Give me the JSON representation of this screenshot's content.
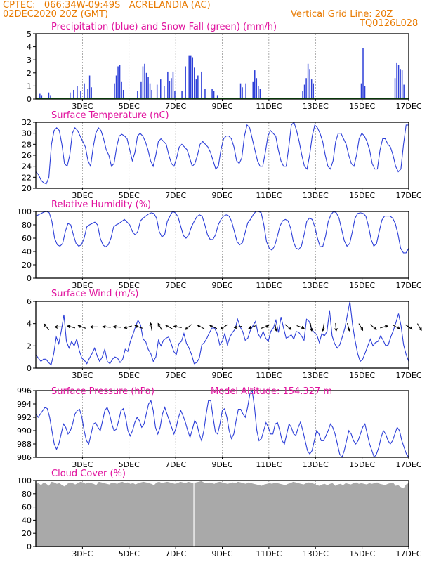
{
  "header": {
    "line1": "CPTEC:   066:34W-09:49S   ACRELANDIA (AC)",
    "line2": "02DEC2020 20Z (GMT)",
    "grid_note": "Vertical Grid Line: 20Z",
    "code": "TQ0126L028"
  },
  "colors": {
    "header": "#e87a00",
    "title": "#e0119d",
    "series_blue": "#2d3fd8",
    "snow_green": "#1aa01a",
    "cloud_gray": "#a9a9a9",
    "wind_arrow": "#000000"
  },
  "x_ticks": [
    "3DEC",
    "5DEC",
    "7DEC",
    "9DEC",
    "11DEC",
    "13DEC",
    "15DEC",
    "17DEC"
  ],
  "chart_data": [
    {
      "id": "precip",
      "type": "bar",
      "title": "Precipitation (blue) and Snow Fall (green) (mm/h)",
      "ylim": [
        0,
        5
      ],
      "yticks": [
        "0",
        "1",
        "2",
        "3",
        "4",
        "5"
      ],
      "x_unit": "days since 2 DEC 2020 20Z",
      "bars": [
        [
          0.2,
          0.4
        ],
        [
          0.3,
          0.3
        ],
        [
          0.7,
          0.5
        ],
        [
          0.8,
          0.3
        ],
        [
          1.9,
          0.5
        ],
        [
          2.1,
          0.7
        ],
        [
          2.3,
          1.0
        ],
        [
          2.5,
          0.6
        ],
        [
          2.7,
          1.2
        ],
        [
          2.9,
          0.8
        ],
        [
          3.0,
          1.8
        ],
        [
          3.1,
          0.9
        ],
        [
          4.4,
          1.2
        ],
        [
          4.5,
          1.8
        ],
        [
          4.6,
          2.5
        ],
        [
          4.7,
          2.6
        ],
        [
          4.8,
          1.3
        ],
        [
          4.9,
          0.7
        ],
        [
          5.7,
          0.6
        ],
        [
          5.9,
          1.3
        ],
        [
          6.0,
          2.5
        ],
        [
          6.1,
          2.7
        ],
        [
          6.2,
          2.0
        ],
        [
          6.3,
          1.7
        ],
        [
          6.4,
          1.2
        ],
        [
          6.5,
          0.7
        ],
        [
          6.8,
          1.1
        ],
        [
          7.0,
          1.5
        ],
        [
          7.2,
          1.0
        ],
        [
          7.4,
          2.1
        ],
        [
          7.5,
          1.4
        ],
        [
          7.6,
          1.6
        ],
        [
          7.7,
          2.1
        ],
        [
          7.8,
          0.6
        ],
        [
          8.2,
          0.6
        ],
        [
          8.4,
          2.5
        ],
        [
          8.6,
          3.3
        ],
        [
          8.7,
          3.3
        ],
        [
          8.8,
          3.2
        ],
        [
          8.9,
          2.4
        ],
        [
          9.0,
          1.5
        ],
        [
          9.1,
          1.8
        ],
        [
          9.3,
          2.1
        ],
        [
          9.5,
          0.8
        ],
        [
          9.9,
          0.8
        ],
        [
          10.0,
          0.6
        ],
        [
          10.2,
          0.3
        ],
        [
          11.5,
          1.2
        ],
        [
          11.6,
          0.9
        ],
        [
          11.8,
          1.2
        ],
        [
          12.2,
          1.3
        ],
        [
          12.3,
          2.2
        ],
        [
          12.4,
          1.6
        ],
        [
          12.5,
          1.0
        ],
        [
          12.6,
          0.8
        ],
        [
          15.0,
          0.6
        ],
        [
          15.1,
          1.1
        ],
        [
          15.2,
          1.6
        ],
        [
          15.3,
          2.7
        ],
        [
          15.4,
          2.3
        ],
        [
          15.5,
          1.5
        ],
        [
          15.6,
          1.2
        ],
        [
          18.3,
          1.2
        ],
        [
          18.4,
          3.9
        ],
        [
          18.5,
          1.0
        ],
        [
          20.2,
          1.6
        ],
        [
          20.3,
          2.8
        ],
        [
          20.4,
          2.6
        ],
        [
          20.5,
          2.3
        ],
        [
          20.6,
          2.2
        ],
        [
          20.7,
          1.1
        ]
      ]
    },
    {
      "id": "temp",
      "type": "line",
      "title": "Surface Temperature (nC)",
      "ylim": [
        20,
        32
      ],
      "yticks": [
        "20",
        "22",
        "24",
        "26",
        "28",
        "30",
        "32"
      ],
      "values": [
        23,
        22.5,
        21.5,
        21,
        20.8,
        22,
        28,
        30.5,
        31,
        30.5,
        28,
        24.5,
        24,
        26,
        30,
        31,
        30.5,
        29.5,
        28.5,
        27.5,
        25,
        24,
        27.5,
        30,
        31,
        30.5,
        29,
        27,
        26,
        24,
        24.5,
        27.5,
        29.5,
        29.8,
        29.5,
        29,
        27,
        25,
        26.5,
        29.5,
        30,
        29.5,
        28.5,
        27,
        25,
        24,
        26,
        28.5,
        29,
        28.5,
        28,
        26,
        24.5,
        24,
        25.5,
        27.5,
        28,
        27.5,
        27,
        25.5,
        24,
        24.5,
        26,
        28,
        28.5,
        28,
        27.5,
        26.5,
        25,
        23.5,
        24,
        27,
        29,
        29.5,
        29.5,
        29,
        27.5,
        25,
        24.5,
        25.5,
        29.5,
        31.5,
        31,
        29,
        27,
        25,
        24,
        24,
        26.5,
        29.5,
        30.5,
        30,
        29.5,
        27,
        25,
        24,
        24,
        27.5,
        31.5,
        32,
        30.5,
        28.5,
        26,
        24,
        23.5,
        26,
        29.5,
        31.5,
        31,
        30,
        28.5,
        26,
        24,
        23.5,
        25,
        28.5,
        30,
        30,
        29,
        28,
        26,
        24.5,
        24,
        26,
        29,
        30,
        29.5,
        28.5,
        27,
        24.5,
        23.5,
        23.5,
        27,
        29,
        29,
        28,
        27.5,
        26,
        24,
        23,
        23.5,
        28,
        31.5,
        31.5
      ]
    },
    {
      "id": "rh",
      "type": "line",
      "title": "Relative Humidity (%)",
      "ylim": [
        0,
        100
      ],
      "yticks": [
        "0",
        "20",
        "40",
        "60",
        "80",
        "100"
      ],
      "values": [
        93,
        95,
        97,
        99,
        100,
        98,
        85,
        60,
        50,
        48,
        52,
        70,
        82,
        80,
        65,
        52,
        48,
        50,
        60,
        77,
        80,
        82,
        84,
        80,
        60,
        50,
        47,
        50,
        60,
        77,
        80,
        82,
        85,
        88,
        84,
        80,
        70,
        65,
        70,
        86,
        90,
        93,
        96,
        98,
        97,
        90,
        70,
        62,
        65,
        85,
        93,
        100,
        98,
        92,
        78,
        64,
        60,
        65,
        77,
        85,
        92,
        95,
        93,
        80,
        65,
        58,
        58,
        65,
        80,
        88,
        93,
        95,
        93,
        85,
        70,
        55,
        50,
        53,
        68,
        83,
        88,
        95,
        100,
        100,
        98,
        80,
        55,
        45,
        42,
        48,
        62,
        78,
        86,
        88,
        86,
        75,
        55,
        45,
        43,
        48,
        65,
        85,
        90,
        88,
        77,
        60,
        47,
        48,
        63,
        85,
        95,
        100,
        98,
        90,
        73,
        56,
        48,
        52,
        70,
        90,
        97,
        98,
        97,
        93,
        78,
        58,
        48,
        52,
        70,
        87,
        93,
        93,
        93,
        90,
        82,
        66,
        45,
        38,
        38,
        45
      ]
    },
    {
      "id": "wind",
      "type": "line",
      "title": "Surface Wind (m/s)",
      "ylim": [
        0,
        6
      ],
      "yticks": [
        "0",
        "2",
        "4",
        "6"
      ],
      "values": [
        1.2,
        0.9,
        0.6,
        0.8,
        0.8,
        0.5,
        0.3,
        1.3,
        2.8,
        2.2,
        3.4,
        4.8,
        2.4,
        1.8,
        2.4,
        2.0,
        2.6,
        1.6,
        0.9,
        0.7,
        0.4,
        0.9,
        1.3,
        1.8,
        1.1,
        0.6,
        1.0,
        1.7,
        0.6,
        0.4,
        0.8,
        1.0,
        0.9,
        0.5,
        0.8,
        1.7,
        1.5,
        2.4,
        3.0,
        3.7,
        4.3,
        3.9,
        2.6,
        2.4,
        1.7,
        1.3,
        0.6,
        1.0,
        2.5,
        2.0,
        2.5,
        2.7,
        2.8,
        2.2,
        1.5,
        1.2,
        2.2,
        2.4,
        3.1,
        2.2,
        1.8,
        1.2,
        0.4,
        0.5,
        0.9,
        2.1,
        2.3,
        2.7,
        3.2,
        3.6,
        3.6,
        3.1,
        2.1,
        2.4,
        3.1,
        2.1,
        2.8,
        3.2,
        3.5,
        4.4,
        3.7,
        3.3,
        2.5,
        2.7,
        3.4,
        3.8,
        4.2,
        3.1,
        2.7,
        3.3,
        2.7,
        2.4,
        3.3,
        3.6,
        4.3,
        3.2,
        4.6,
        3.6,
        2.7,
        2.8,
        3.0,
        2.6,
        3.3,
        3.2,
        2.9,
        2.5,
        4.4,
        4.2,
        3.5,
        3.2,
        3.0,
        2.3,
        3.1,
        2.9,
        3.3,
        5.2,
        2.9,
        2.2,
        1.8,
        2.1,
        2.8,
        3.6,
        4.8,
        6.5,
        3.9,
        2.5,
        1.3,
        0.6,
        0.8,
        1.4,
        2.0,
        2.6,
        2.0,
        2.3,
        2.4,
        2.9,
        2.5,
        2.0,
        2.1,
        2.8,
        3.4,
        4.1,
        4.9,
        3.8,
        2.1,
        1.2,
        0.6
      ]
    },
    {
      "id": "pressure",
      "type": "line",
      "title": "Surface Pressure (hPa)",
      "annotation": "Model Altitude: 154.327 m",
      "ylim": [
        986,
        996
      ],
      "yticks": [
        "986",
        "988",
        "990",
        "992",
        "994",
        "996"
      ],
      "values": [
        992.5,
        992,
        992.5,
        993,
        993.5,
        993.3,
        992,
        990,
        988,
        987.2,
        988,
        989.5,
        991,
        990.5,
        989.5,
        990,
        991,
        992.5,
        993,
        993.2,
        992,
        990,
        988.5,
        988,
        989.5,
        991,
        991.2,
        990.5,
        990,
        991.5,
        993,
        993.5,
        992.5,
        991,
        990,
        990.2,
        991.5,
        993,
        993.3,
        992,
        990,
        989.2,
        990,
        991.2,
        992,
        991.5,
        990.5,
        991,
        992.5,
        994,
        994.5,
        993,
        990.5,
        989.5,
        990.5,
        992.5,
        993.5,
        992.5,
        991.5,
        990.5,
        989.5,
        990.5,
        992,
        993,
        992.2,
        991.2,
        990,
        989,
        990.2,
        991.5,
        991,
        989.5,
        988.5,
        990,
        992.5,
        994.5,
        994.5,
        992,
        989.8,
        989.5,
        991,
        993,
        993.3,
        992,
        990,
        988.8,
        989.5,
        991.5,
        993.2,
        993.2,
        992.5,
        992,
        993.5,
        995.5,
        996,
        993.5,
        990,
        988.5,
        988.8,
        990,
        991.2,
        990.5,
        989.5,
        989.5,
        991,
        991.2,
        990,
        988.5,
        988,
        989.5,
        991,
        990.5,
        989.5,
        989.3,
        990.5,
        991.3,
        990,
        988.5,
        987,
        986.5,
        987,
        988.5,
        990,
        989.5,
        988.5,
        988.5,
        989.2,
        990,
        991,
        990.5,
        989.5,
        988,
        986.5,
        986,
        987,
        988.5,
        990,
        989.5,
        988.5,
        988,
        988.5,
        989.5,
        990.5,
        991,
        989.5,
        988,
        987,
        986,
        986.5,
        987.5,
        989,
        990,
        989.5,
        988.5,
        988,
        988.5,
        989.5,
        990.5,
        990,
        988.5,
        987.5,
        986.5,
        986
      ]
    },
    {
      "id": "cloud",
      "type": "area",
      "title": "Cloud Cover (%)",
      "ylim": [
        0,
        100
      ],
      "yticks": [
        "0",
        "20",
        "40",
        "60",
        "80",
        "100"
      ],
      "values": [
        95,
        96,
        93,
        97,
        95,
        92,
        98,
        97,
        95,
        96,
        93,
        91,
        95,
        97,
        96,
        94,
        96,
        98,
        97,
        95,
        97,
        96,
        95,
        93,
        98,
        97,
        96,
        95,
        94,
        97,
        96,
        95,
        97,
        98,
        96,
        97,
        95,
        96,
        94,
        96,
        97,
        98,
        97,
        96,
        95,
        93,
        97,
        98,
        96,
        97,
        98,
        97,
        96,
        95,
        96,
        98,
        97,
        96,
        98,
        97,
        96,
        97,
        98,
        99,
        97,
        96,
        97,
        96,
        95,
        97,
        98,
        97,
        96,
        95,
        96,
        97,
        96,
        98,
        97,
        96,
        95,
        97,
        96,
        95,
        94,
        93,
        92,
        94,
        95,
        96,
        95,
        97,
        96,
        95,
        94,
        93,
        95,
        96,
        98,
        97,
        96,
        95,
        94,
        96,
        97,
        96,
        95,
        93,
        92,
        94,
        95,
        93,
        95,
        96,
        92,
        94,
        95,
        93,
        96,
        95,
        94,
        96,
        97,
        95,
        96,
        95,
        94,
        96,
        95,
        96,
        97,
        95,
        94,
        93,
        95,
        96,
        97,
        92,
        93,
        90,
        88,
        94,
        96
      ]
    }
  ],
  "wind_arrows": [
    {
      "day": 0.6,
      "angle": -130
    },
    {
      "day": 1.3,
      "angle": 180
    },
    {
      "day": 2.0,
      "angle": -165
    },
    {
      "day": 2.6,
      "angle": -160
    },
    {
      "day": 3.3,
      "angle": 180
    },
    {
      "day": 4.0,
      "angle": 185
    },
    {
      "day": 4.6,
      "angle": -175
    },
    {
      "day": 5.2,
      "angle": 165
    },
    {
      "day": 5.8,
      "angle": -160
    },
    {
      "day": 6.5,
      "angle": -100
    },
    {
      "day": 7.0,
      "angle": -120
    },
    {
      "day": 7.5,
      "angle": -150
    },
    {
      "day": 8.0,
      "angle": -170
    },
    {
      "day": 8.6,
      "angle": 140
    },
    {
      "day": 9.3,
      "angle": -150
    },
    {
      "day": 10.0,
      "angle": -155
    },
    {
      "day": 10.6,
      "angle": 145
    },
    {
      "day": 11.4,
      "angle": 170
    },
    {
      "day": 12.2,
      "angle": 160
    },
    {
      "day": 12.9,
      "angle": -20
    },
    {
      "day": 13.5,
      "angle": 80
    },
    {
      "day": 14.2,
      "angle": 40
    },
    {
      "day": 14.9,
      "angle": 20
    },
    {
      "day": 15.5,
      "angle": 80
    },
    {
      "day": 16.2,
      "angle": 100
    },
    {
      "day": 16.9,
      "angle": 85
    },
    {
      "day": 17.6,
      "angle": 75
    },
    {
      "day": 18.3,
      "angle": 60
    },
    {
      "day": 19.0,
      "angle": 40
    },
    {
      "day": 19.6,
      "angle": -15
    },
    {
      "day": 20.3,
      "angle": 30
    },
    {
      "day": 21.0,
      "angle": 35
    },
    {
      "day": 21.6,
      "angle": 60
    }
  ]
}
